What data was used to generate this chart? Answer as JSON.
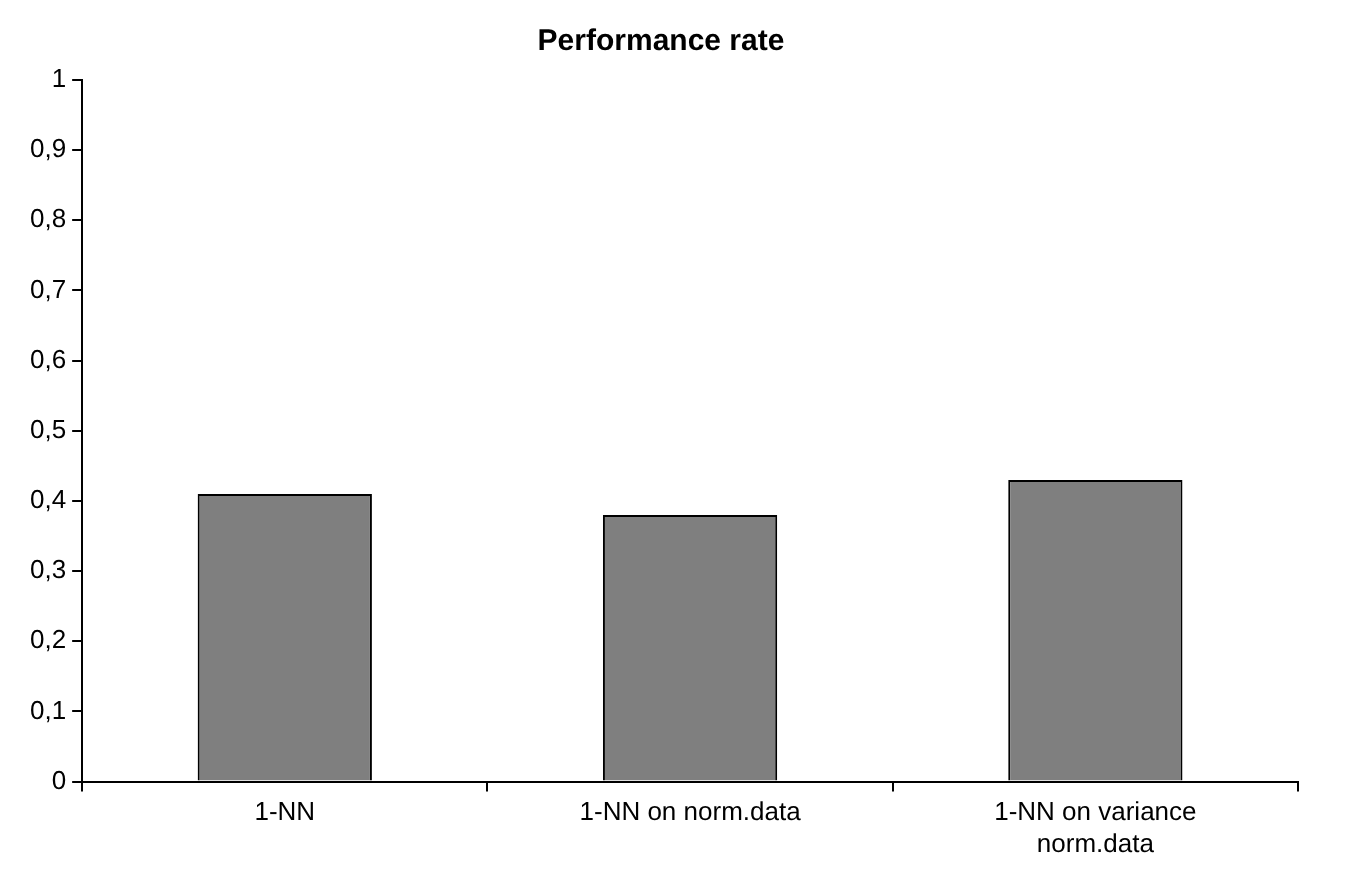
{
  "chart_data": {
    "type": "bar",
    "title": "Performance rate",
    "categories": [
      "1-NN",
      "1-NN on norm.data",
      "1-NN on variance norm.data"
    ],
    "values": [
      0.41,
      0.38,
      0.43
    ],
    "color": "#7f7f7f",
    "ylim": [
      0,
      1
    ],
    "yticks": [
      0,
      {
        "value": 0.1,
        "label": "0,1"
      },
      {
        "value": 0.2,
        "label": "0,2"
      },
      {
        "value": 0.3,
        "label": "0,3"
      },
      {
        "value": 0.4,
        "label": "0,4"
      },
      {
        "value": 0.5,
        "label": "0,5"
      },
      {
        "value": 0.6,
        "label": "0,6"
      },
      {
        "value": 0.7,
        "label": "0,7"
      },
      {
        "value": 0.8,
        "label": "0,8"
      },
      {
        "value": 0.9,
        "label": "0,9"
      },
      1
    ],
    "grid": false,
    "legend": false
  }
}
